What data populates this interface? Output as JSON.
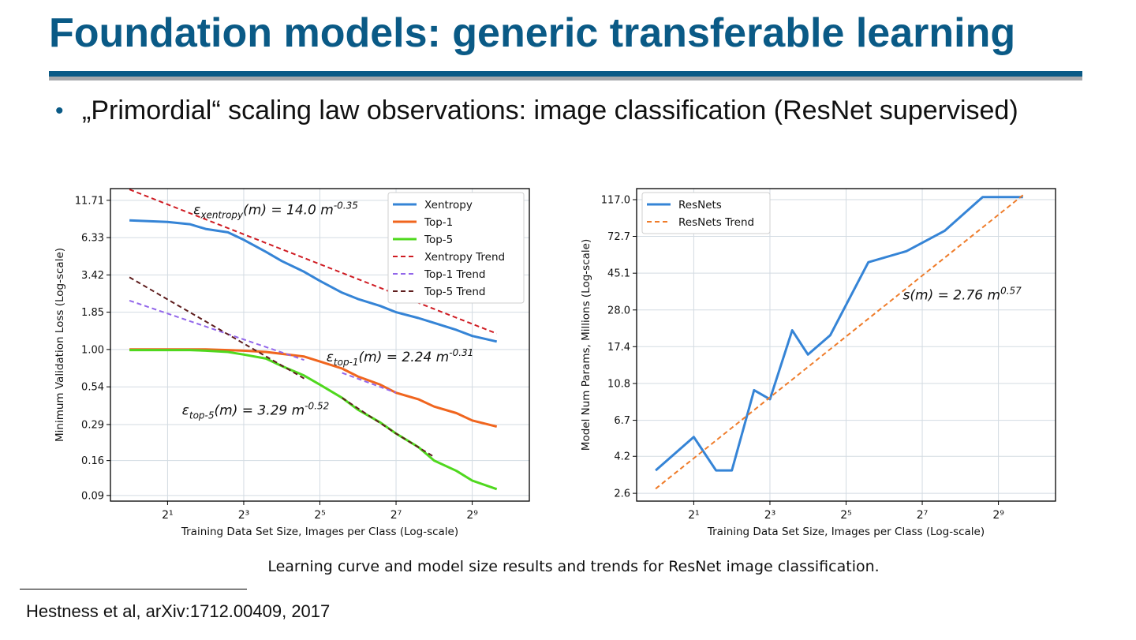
{
  "slide": {
    "title": "Foundation models: generic transferable learning",
    "bullet": "„Primordial“ scaling law observations: image classification (ResNet supervised)",
    "caption": "Learning curve and model size results and trends for ResNet image classification.",
    "footnote": "Hestness et al, arXiv:1712.00409, 2017"
  },
  "colors": {
    "title": "#0a5a86",
    "xentropy": "#3584d6",
    "top1": "#f0651e",
    "top5": "#4fd81e",
    "xentropy_trend": "#cf1b22",
    "top1_trend": "#9266ea",
    "top5_trend": "#5e1d1d",
    "resnets": "#3584d6",
    "resnets_trend": "#ef7c2a"
  },
  "chart_data": [
    {
      "type": "line",
      "xlabel": "Training Data Set Size, Images per Class (Log-scale)",
      "ylabel": "Minimum Validation Loss (Log-scale)",
      "log_x": true,
      "log_y": true,
      "xlim_log2": [
        -0.5,
        10.5
      ],
      "ylim": [
        0.082,
        14.2
      ],
      "xticks": [
        {
          "exp": 1,
          "label": "2¹"
        },
        {
          "exp": 3,
          "label": "2³"
        },
        {
          "exp": 5,
          "label": "2⁵"
        },
        {
          "exp": 7,
          "label": "2⁷"
        },
        {
          "exp": 9,
          "label": "2⁹"
        }
      ],
      "yticks": [
        {
          "value": 11.71,
          "label": "11.71"
        },
        {
          "value": 6.33,
          "label": "6.33"
        },
        {
          "value": 3.42,
          "label": "3.42"
        },
        {
          "value": 1.85,
          "label": "1.85"
        },
        {
          "value": 1.0,
          "label": "1.00"
        },
        {
          "value": 0.54,
          "label": "0.54"
        },
        {
          "value": 0.29,
          "label": "0.29"
        },
        {
          "value": 0.16,
          "label": "0.16"
        },
        {
          "value": 0.09,
          "label": "0.09"
        }
      ],
      "grid": true,
      "legend_position": "top-right",
      "series": [
        {
          "name": "Xentropy",
          "style": "solid",
          "color": "xentropy",
          "x": [
            1,
            2,
            3,
            4,
            6,
            8,
            12,
            16,
            24,
            32,
            48,
            64,
            96,
            128,
            192,
            256,
            384,
            512,
            800
          ],
          "y": [
            8.4,
            8.2,
            7.9,
            7.3,
            6.9,
            6.1,
            5.0,
            4.3,
            3.6,
            3.1,
            2.55,
            2.3,
            2.05,
            1.85,
            1.68,
            1.55,
            1.38,
            1.25,
            1.14
          ]
        },
        {
          "name": "Top-1",
          "style": "solid",
          "color": "top1",
          "x": [
            1,
            2,
            3,
            4,
            6,
            8,
            12,
            16,
            24,
            32,
            48,
            64,
            96,
            128,
            192,
            256,
            384,
            512,
            800
          ],
          "y": [
            1.0,
            1.0,
            1.0,
            1.0,
            0.99,
            0.98,
            0.96,
            0.93,
            0.89,
            0.82,
            0.73,
            0.64,
            0.56,
            0.49,
            0.44,
            0.39,
            0.35,
            0.31,
            0.28
          ]
        },
        {
          "name": "Top-5",
          "style": "solid",
          "color": "top5",
          "x": [
            1,
            2,
            3,
            4,
            6,
            8,
            12,
            16,
            24,
            32,
            48,
            64,
            96,
            128,
            192,
            256,
            384,
            512,
            800
          ],
          "y": [
            0.99,
            0.99,
            0.99,
            0.98,
            0.96,
            0.92,
            0.86,
            0.76,
            0.65,
            0.56,
            0.45,
            0.37,
            0.3,
            0.25,
            0.2,
            0.16,
            0.135,
            0.115,
            0.1
          ]
        },
        {
          "name": "Xentropy Trend",
          "style": "dashed",
          "color": "xentropy_trend",
          "x": [
            1,
            800
          ],
          "y": [
            14.0,
            1.3
          ]
        },
        {
          "name": "Top-1 Trend",
          "style": "dashed",
          "color": "top1_trend",
          "x": [
            1,
            24
          ],
          "y": [
            2.24,
            0.84
          ]
        },
        {
          "name": "Top-5 Trend",
          "style": "dashed",
          "color": "top5_trend",
          "x": [
            1,
            24
          ],
          "y": [
            3.29,
            0.62
          ]
        },
        {
          "name": "",
          "style": "dashed",
          "color": "top1_trend",
          "x": [
            48,
            128
          ],
          "y": [
            0.68,
            0.49
          ]
        },
        {
          "name": "",
          "style": "dashed",
          "color": "top5_trend",
          "x": [
            48,
            128,
            256
          ],
          "y": [
            0.45,
            0.25,
            0.17
          ]
        }
      ],
      "annotations": [
        {
          "base": "ε",
          "sub": "xentropy",
          "rest": "(m) = 14.0 m",
          "sup": "-0.35",
          "x": 3.2,
          "y": 9.3
        },
        {
          "base": "ε",
          "sub": "top-1",
          "rest": "(m) = 2.24 m",
          "sup": "-0.31",
          "x": 36,
          "y": 0.82
        },
        {
          "base": "ε",
          "sub": "top-5",
          "rest": "(m) = 3.29 m",
          "sup": "-0.52",
          "x": 2.6,
          "y": 0.34
        }
      ]
    },
    {
      "type": "line",
      "xlabel": "Training Data Set Size, Images per Class (Log-scale)",
      "ylabel": "Model Num Params, Millions (Log-scale)",
      "log_x": true,
      "log_y": true,
      "xlim_log2": [
        -0.5,
        10.5
      ],
      "ylim": [
        2.35,
        135
      ],
      "xticks": [
        {
          "exp": 1,
          "label": "2¹"
        },
        {
          "exp": 3,
          "label": "2³"
        },
        {
          "exp": 5,
          "label": "2⁵"
        },
        {
          "exp": 7,
          "label": "2⁷"
        },
        {
          "exp": 9,
          "label": "2⁹"
        }
      ],
      "yticks": [
        {
          "value": 117.0,
          "label": "117.0"
        },
        {
          "value": 72.7,
          "label": "72.7"
        },
        {
          "value": 45.1,
          "label": "45.1"
        },
        {
          "value": 28.0,
          "label": "28.0"
        },
        {
          "value": 17.4,
          "label": "17.4"
        },
        {
          "value": 10.8,
          "label": "10.8"
        },
        {
          "value": 6.7,
          "label": "6.7"
        },
        {
          "value": 4.2,
          "label": "4.2"
        },
        {
          "value": 2.6,
          "label": "2.6"
        }
      ],
      "grid": true,
      "legend_position": "top-left",
      "series": [
        {
          "name": "ResNets",
          "style": "solid",
          "color": "resnets",
          "x": [
            1,
            2,
            3,
            4,
            6,
            8,
            12,
            16,
            24,
            48,
            96,
            192,
            384,
            800
          ],
          "y": [
            3.5,
            5.4,
            3.5,
            3.5,
            9.9,
            8.8,
            21.5,
            15.7,
            20.2,
            52.0,
            60.0,
            78.0,
            121.0,
            121.0
          ]
        },
        {
          "name": "ResNets Trend",
          "style": "dashed",
          "color": "resnets_trend",
          "x": [
            1,
            800
          ],
          "y": [
            2.76,
            124.0
          ]
        }
      ],
      "annotations": [
        {
          "base": "s",
          "sub": "",
          "rest": "(m) = 2.76 m",
          "sup": "0.57",
          "x": 90,
          "y": 32
        }
      ]
    }
  ]
}
